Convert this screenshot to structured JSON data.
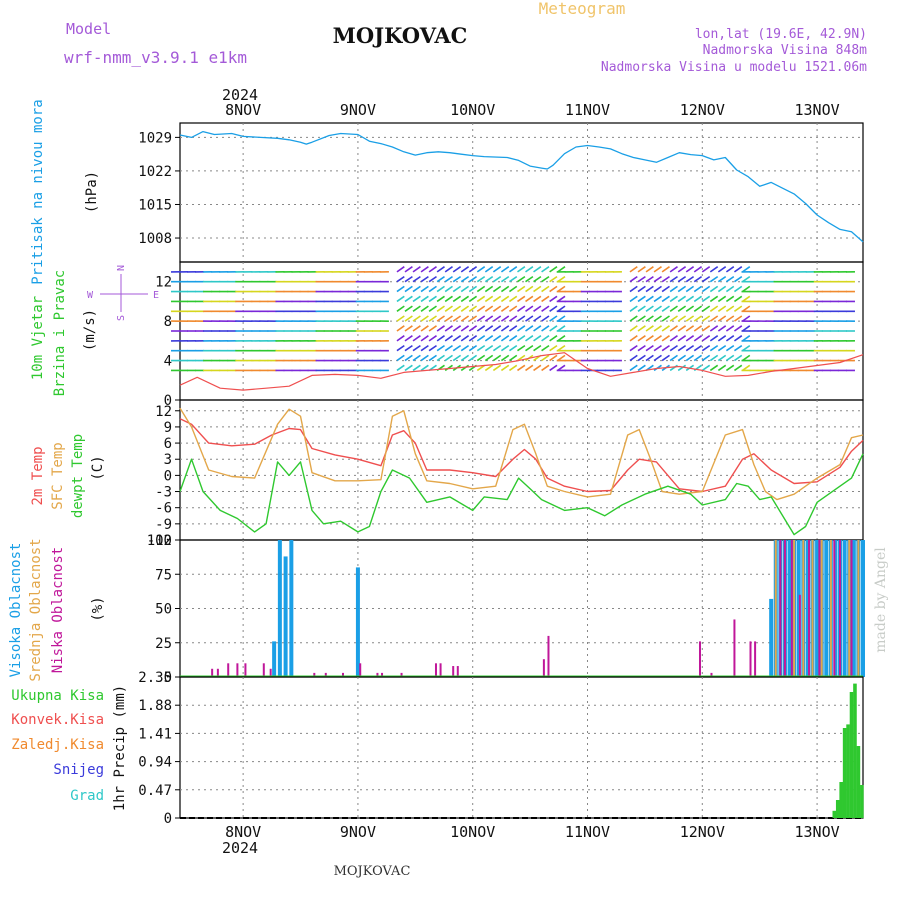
{
  "header": {
    "model_label": "Model",
    "model_name": "wrf-nmm_v3.9.1  e1km",
    "station": "MOJKOVAC",
    "meteogram": "Meteogram",
    "lonlat": "lon,lat (19.6E, 42.9N)",
    "elev": "Nadmorska Visina 848m",
    "elev_model": "Nadmorska Visina u modelu 1521.06m",
    "watermark": "made by Angel",
    "footer": "MOJKOVAC"
  },
  "colors": {
    "pressure": "#1a9fe6",
    "temp2m": "#ef4f4f",
    "sfc": "#e3a74a",
    "dewpt": "#2fc82f",
    "high_cloud": "#1a9fe6",
    "mid_cloud": "#e3a74a",
    "low_cloud": "#c0179a",
    "precip_total": "#2fc82f",
    "precip_conv": "#ef4f4f",
    "precip_frz": "#f08a2e",
    "snow": "#3b3bdb",
    "grad": "#2fc8c8",
    "label_purple": "#a45ad8"
  },
  "chart_data": [
    {
      "type": "line",
      "id": "pressure",
      "title": "",
      "ylabel": "Pritisak na nivou mora",
      "units": "(hPa)",
      "ylim": [
        1003,
        1032
      ],
      "yticks": [
        1008,
        1015,
        1022,
        1029
      ],
      "x_axis_top_year": "2024",
      "x_ticks": [
        "8NOV",
        "9NOV",
        "10NOV",
        "11NOV",
        "12NOV",
        "13NOV"
      ],
      "x_range_days": [
        -0.55,
        5.4
      ],
      "grid": true,
      "series": [
        {
          "name": "",
          "x": [
            -0.55,
            -0.45,
            -0.35,
            -0.25,
            -0.1,
            0.0,
            0.15,
            0.3,
            0.4,
            0.5,
            0.55,
            0.6,
            0.75,
            0.85,
            1.0,
            1.1,
            1.2,
            1.3,
            1.4,
            1.5,
            1.6,
            1.7,
            1.8,
            1.9,
            2.0,
            2.1,
            2.3,
            2.4,
            2.5,
            2.6,
            2.65,
            2.7,
            2.8,
            2.9,
            3.0,
            3.1,
            3.2,
            3.3,
            3.4,
            3.5,
            3.6,
            3.7,
            3.8,
            3.9,
            4.0,
            4.1,
            4.2,
            4.3,
            4.4,
            4.5,
            4.6,
            4.7,
            4.8,
            4.9,
            5.0,
            5.1,
            5.2,
            5.3,
            5.4
          ],
          "values": [
            1029.5,
            1029.0,
            1030.2,
            1029.6,
            1029.8,
            1029.2,
            1029.0,
            1028.8,
            1028.5,
            1028.0,
            1027.6,
            1028.0,
            1029.4,
            1029.8,
            1029.6,
            1028.2,
            1027.7,
            1027.0,
            1026.0,
            1025.3,
            1025.8,
            1026.0,
            1025.8,
            1025.5,
            1025.2,
            1025.0,
            1024.8,
            1024.2,
            1023.0,
            1022.6,
            1022.4,
            1023.2,
            1025.6,
            1027.0,
            1027.3,
            1027.0,
            1026.6,
            1025.6,
            1024.8,
            1024.3,
            1023.8,
            1024.8,
            1025.8,
            1025.4,
            1025.2,
            1024.3,
            1024.8,
            1022.2,
            1020.8,
            1018.8,
            1019.6,
            1018.4,
            1017.2,
            1015.2,
            1012.8,
            1011.2,
            1009.8,
            1009.3,
            1007.2
          ]
        }
      ]
    },
    {
      "type": "line",
      "id": "wind",
      "ylabel_1": "10m Vjetar",
      "ylabel_2": "Brzina i Pravac",
      "units": "(m/s)",
      "compass": {
        "n": "N",
        "s": "S",
        "w": "W",
        "e": "E"
      },
      "ylim": [
        0,
        14
      ],
      "yticks": [
        0,
        4,
        8,
        12
      ],
      "x_range_days": [
        -0.55,
        5.4
      ],
      "grid": true,
      "series": [
        {
          "name": "",
          "x": [
            -0.55,
            -0.4,
            -0.2,
            0.0,
            0.2,
            0.4,
            0.6,
            0.8,
            1.0,
            1.2,
            1.4,
            1.6,
            1.8,
            2.0,
            2.2,
            2.4,
            2.6,
            2.8,
            3.0,
            3.2,
            3.4,
            3.6,
            3.8,
            4.0,
            4.2,
            4.4,
            4.6,
            4.8,
            5.0,
            5.2,
            5.4
          ],
          "values": [
            1.5,
            2.3,
            1.2,
            1.0,
            1.2,
            1.4,
            2.5,
            2.6,
            2.5,
            2.2,
            2.8,
            3.0,
            3.2,
            3.4,
            3.6,
            4.0,
            4.5,
            4.8,
            3.2,
            2.4,
            2.8,
            3.2,
            3.4,
            3.0,
            2.4,
            2.5,
            2.9,
            3.2,
            3.5,
            3.8,
            4.6
          ]
        }
      ]
    },
    {
      "type": "line",
      "id": "temperature",
      "ylabel_1": "2m Temp",
      "ylabel_2": "SFC Temp",
      "ylabel_3": "dewpt Temp",
      "units": "(C)",
      "ylim": [
        -12,
        14
      ],
      "yticks": [
        -12,
        -9,
        -6,
        -3,
        0,
        3,
        6,
        9,
        12
      ],
      "x_range_days": [
        -0.55,
        5.4
      ],
      "grid": true,
      "series": [
        {
          "name": "2m Temp",
          "x": [
            -0.55,
            -0.45,
            -0.3,
            -0.1,
            0.1,
            0.25,
            0.4,
            0.5,
            0.6,
            0.8,
            1.0,
            1.2,
            1.3,
            1.4,
            1.5,
            1.6,
            1.8,
            2.0,
            2.2,
            2.35,
            2.45,
            2.55,
            2.65,
            2.8,
            3.0,
            3.2,
            3.35,
            3.45,
            3.6,
            3.8,
            4.0,
            4.2,
            4.35,
            4.45,
            4.6,
            4.8,
            5.0,
            5.2,
            5.3,
            5.4
          ],
          "values": [
            10.5,
            9.5,
            6.0,
            5.5,
            5.8,
            7.5,
            8.7,
            8.5,
            5.0,
            3.8,
            3.0,
            1.8,
            7.5,
            8.3,
            6.0,
            1.0,
            1.0,
            0.5,
            -0.2,
            3.0,
            4.8,
            3.0,
            -0.5,
            -2.0,
            -3.0,
            -2.8,
            1.0,
            3.0,
            2.5,
            -2.5,
            -3.0,
            -2.0,
            3.0,
            4.0,
            1.0,
            -1.5,
            -1.2,
            1.5,
            4.5,
            6.5
          ]
        },
        {
          "name": "SFC Temp",
          "x": [
            -0.55,
            -0.45,
            -0.3,
            -0.1,
            0.1,
            0.3,
            0.4,
            0.5,
            0.6,
            0.8,
            1.0,
            1.2,
            1.3,
            1.4,
            1.5,
            1.6,
            1.8,
            2.0,
            2.2,
            2.35,
            2.45,
            2.55,
            2.65,
            2.8,
            3.0,
            3.2,
            3.35,
            3.45,
            3.55,
            3.65,
            3.8,
            4.0,
            4.2,
            4.35,
            4.45,
            4.55,
            4.65,
            4.8,
            5.0,
            5.2,
            5.3,
            5.4
          ],
          "values": [
            12.5,
            9.0,
            1.0,
            -0.2,
            -0.5,
            9.5,
            12.3,
            11.0,
            0.5,
            -1.0,
            -1.0,
            -0.8,
            11.0,
            12.0,
            4.0,
            -1.0,
            -1.5,
            -2.5,
            -2.0,
            8.5,
            9.5,
            4.0,
            -2.0,
            -3.0,
            -4.0,
            -3.5,
            7.5,
            8.5,
            3.0,
            -3.0,
            -3.5,
            -3.0,
            7.5,
            8.5,
            2.0,
            -3.0,
            -4.5,
            -3.5,
            -0.5,
            2.0,
            7.0,
            7.5
          ]
        },
        {
          "name": "dewpt Temp",
          "x": [
            -0.55,
            -0.45,
            -0.35,
            -0.2,
            -0.05,
            0.1,
            0.2,
            0.3,
            0.4,
            0.5,
            0.6,
            0.7,
            0.85,
            1.0,
            1.1,
            1.2,
            1.3,
            1.45,
            1.6,
            1.8,
            2.0,
            2.1,
            2.3,
            2.4,
            2.5,
            2.6,
            2.8,
            3.0,
            3.15,
            3.3,
            3.5,
            3.7,
            3.9,
            4.0,
            4.2,
            4.3,
            4.4,
            4.5,
            4.6,
            4.8,
            4.9,
            5.0,
            5.1,
            5.3,
            5.4
          ],
          "values": [
            -3.0,
            3.0,
            -3.0,
            -6.5,
            -8.0,
            -10.5,
            -9.0,
            2.5,
            0.0,
            2.5,
            -6.5,
            -9.0,
            -8.5,
            -10.5,
            -9.5,
            -3.0,
            1.0,
            -0.5,
            -5.0,
            -4.0,
            -6.5,
            -4.0,
            -4.5,
            -0.5,
            -2.5,
            -4.5,
            -6.5,
            -6.0,
            -7.5,
            -5.5,
            -3.5,
            -2.0,
            -3.5,
            -5.5,
            -4.5,
            -1.5,
            -2.0,
            -4.5,
            -4.0,
            -11.0,
            -9.5,
            -5.0,
            -3.5,
            -0.5,
            4.0
          ]
        }
      ]
    },
    {
      "type": "bar",
      "id": "clouds",
      "ylabel_1": "Visoka Oblacnost",
      "ylabel_2": "Srednja Oblacnost",
      "ylabel_3": "Niska Oblacnost",
      "units": "(%)",
      "ylim": [
        0,
        100
      ],
      "yticks": [
        0,
        25,
        50,
        75,
        100
      ],
      "x_range_days": [
        -0.55,
        5.4
      ],
      "grid": true,
      "series": [
        {
          "name": "Visoka Oblacnost",
          "x": [
            0.27,
            0.32,
            0.37,
            0.42,
            1.0,
            4.6,
            4.64,
            4.68,
            4.72,
            4.76,
            4.8,
            4.84,
            4.88,
            4.92,
            4.96,
            5.0,
            5.04,
            5.08,
            5.12,
            5.16,
            5.2,
            5.24,
            5.28,
            5.32,
            5.36,
            5.4
          ],
          "values": [
            26,
            100,
            88,
            100,
            80,
            57,
            100,
            100,
            100,
            100,
            100,
            100,
            100,
            100,
            100,
            100,
            100,
            100,
            100,
            100,
            100,
            100,
            100,
            100,
            100,
            100
          ]
        },
        {
          "name": "Srednja Oblacnost",
          "x": [
            4.64,
            4.72,
            4.8,
            4.88,
            4.96,
            5.04,
            5.12,
            5.2,
            5.28,
            5.36
          ],
          "values": [
            100,
            100,
            100,
            100,
            100,
            100,
            100,
            100,
            100,
            100
          ]
        },
        {
          "name": "Niska Oblacnost",
          "x": [
            -0.27,
            -0.22,
            -0.13,
            -0.05,
            0.02,
            0.18,
            0.24,
            0.62,
            0.72,
            0.87,
            1.02,
            1.17,
            1.21,
            1.38,
            1.68,
            1.72,
            1.83,
            1.87,
            2.62,
            2.66,
            3.98,
            4.08,
            4.28,
            4.42,
            4.46,
            4.68,
            4.72,
            4.78,
            4.85,
            4.93,
            5.02,
            5.15,
            5.2,
            5.3
          ],
          "values": [
            6,
            6,
            10,
            10,
            10,
            10,
            6,
            3,
            3,
            3,
            10,
            3,
            3,
            3,
            10,
            10,
            8,
            8,
            13,
            30,
            26,
            3,
            42,
            26,
            26,
            100,
            100,
            100,
            60,
            100,
            100,
            100,
            100,
            100
          ]
        }
      ]
    },
    {
      "type": "bar",
      "id": "precip",
      "legend": [
        "Ukupna Kisa",
        "Konvek.Kisa",
        "Zaledj.Kisa",
        "Snijeg",
        "Grad"
      ],
      "ylabel": "1hr Precip (mm)",
      "ylim": [
        0,
        2.35
      ],
      "yticks": [
        0,
        0.47,
        0.94,
        1.41,
        1.88,
        2.35
      ],
      "ytick_labels": [
        "0",
        "0.47",
        "0.94",
        "1.41",
        "1.88",
        "2.35"
      ],
      "x_ticks": [
        "8NOV",
        "9NOV",
        "10NOV",
        "11NOV",
        "12NOV",
        "13NOV"
      ],
      "x_axis_bottom_year": "2024",
      "x_range_days": [
        -0.55,
        5.4
      ],
      "grid": true,
      "series": [
        {
          "name": "Ukupna Kisa",
          "x": [
            5.15,
            5.18,
            5.21,
            5.24,
            5.27,
            5.3,
            5.33,
            5.36,
            5.39
          ],
          "values": [
            0.12,
            0.3,
            0.6,
            1.5,
            1.56,
            2.1,
            2.24,
            1.2,
            0.55
          ]
        }
      ]
    }
  ]
}
